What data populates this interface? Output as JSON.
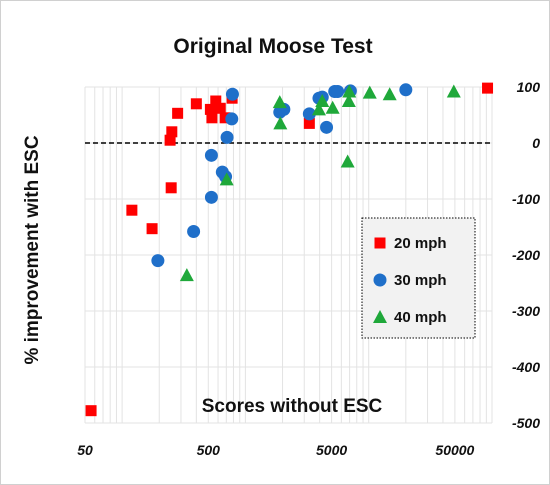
{
  "chart_data": {
    "type": "scatter",
    "title": "Original Moose Test",
    "xlabel": "Scores without ESC",
    "ylabel": "% improvement with ESC",
    "x_scale": "log",
    "xlim": [
      50,
      100000
    ],
    "ylim": [
      -500,
      100
    ],
    "x_ticks": [
      {
        "value": 50,
        "label": "50"
      },
      {
        "value": 500,
        "label": "500"
      },
      {
        "value": 5000,
        "label": "5000"
      },
      {
        "value": 50000,
        "label": "50000"
      }
    ],
    "y_ticks": [
      {
        "value": 100,
        "label": "100"
      },
      {
        "value": 0,
        "label": "0"
      },
      {
        "value": -100,
        "label": "-100"
      },
      {
        "value": -200,
        "label": "-200"
      },
      {
        "value": -300,
        "label": "-300"
      },
      {
        "value": -400,
        "label": "-400"
      },
      {
        "value": -500,
        "label": "-500"
      }
    ],
    "reference_line": {
      "y": 0,
      "style": "dashed"
    },
    "grid": true,
    "legend_position": "right-middle",
    "series": [
      {
        "name": "20 mph",
        "marker": "square",
        "color": "#ff0000",
        "points": [
          [
            56,
            -478
          ],
          [
            120,
            -120
          ],
          [
            175,
            -153
          ],
          [
            245,
            5
          ],
          [
            253,
            20
          ],
          [
            250,
            -80
          ],
          [
            282,
            53
          ],
          [
            400,
            70
          ],
          [
            520,
            60
          ],
          [
            535,
            45
          ],
          [
            575,
            75
          ],
          [
            625,
            62
          ],
          [
            685,
            45
          ],
          [
            780,
            80
          ],
          [
            3300,
            35
          ],
          [
            92000,
            98
          ]
        ]
      },
      {
        "name": "30 mph",
        "marker": "circle",
        "color": "#1f6fc9",
        "points": [
          [
            195,
            -210
          ],
          [
            380,
            -158
          ],
          [
            530,
            -97
          ],
          [
            530,
            -22
          ],
          [
            650,
            -52
          ],
          [
            690,
            -60
          ],
          [
            710,
            10
          ],
          [
            775,
            43
          ],
          [
            785,
            87
          ],
          [
            1900,
            55
          ],
          [
            2050,
            60
          ],
          [
            3300,
            52
          ],
          [
            3950,
            80
          ],
          [
            4200,
            82
          ],
          [
            4550,
            28
          ],
          [
            5300,
            92
          ],
          [
            5600,
            92
          ],
          [
            7100,
            93
          ],
          [
            20000,
            95
          ]
        ]
      },
      {
        "name": "40 mph",
        "marker": "triangle",
        "color": "#1fa83a",
        "points": [
          [
            335,
            -236
          ],
          [
            705,
            -65
          ],
          [
            1900,
            73
          ],
          [
            1920,
            35
          ],
          [
            3950,
            60
          ],
          [
            4200,
            75
          ],
          [
            5100,
            63
          ],
          [
            6900,
            75
          ],
          [
            6950,
            92
          ],
          [
            6750,
            -33
          ],
          [
            10200,
            90
          ],
          [
            14800,
            87
          ],
          [
            49000,
            92
          ]
        ]
      }
    ]
  }
}
